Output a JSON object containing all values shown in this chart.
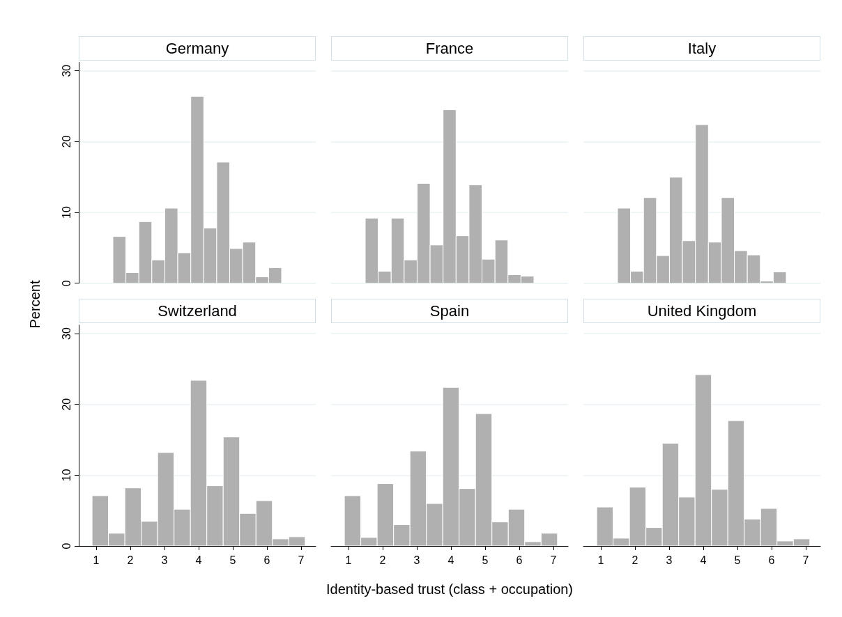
{
  "chart_data": [
    {
      "type": "histogram",
      "title": "Germany",
      "ylabel": "Percent",
      "color": "#b0b0b0",
      "bins": [
        1.49,
        1.87,
        2.25,
        2.63,
        3.01,
        3.39,
        3.77,
        4.15,
        4.53,
        4.91,
        5.29,
        5.67,
        6.05,
        6.43
      ],
      "values": [
        6.6,
        1.5,
        8.7,
        3.3,
        10.6,
        4.3,
        26.4,
        7.8,
        17.1,
        4.9,
        5.8,
        0.9,
        2.2
      ],
      "xlim": [
        0.49,
        7.43
      ],
      "xticks": [
        1,
        2,
        3,
        4,
        5,
        6,
        7
      ],
      "ylim": [
        0,
        31.2
      ],
      "yticks": [
        0,
        10,
        20,
        30
      ],
      "grid": "y",
      "tick_labels": "y"
    },
    {
      "type": "histogram",
      "title": "France",
      "color": "#b0b0b0",
      "bins": [
        1.49,
        1.87,
        2.25,
        2.63,
        3.01,
        3.39,
        3.77,
        4.15,
        4.53,
        4.91,
        5.29,
        5.67,
        6.05,
        6.43
      ],
      "values": [
        9.2,
        1.7,
        9.2,
        3.3,
        14.1,
        5.4,
        24.5,
        6.7,
        13.9,
        3.4,
        6.1,
        1.2,
        1.0
      ],
      "xlim": [
        0.49,
        7.43
      ],
      "xticks": [
        1,
        2,
        3,
        4,
        5,
        6,
        7
      ],
      "ylim": [
        0,
        30
      ],
      "yticks": [
        0,
        10,
        20,
        30
      ],
      "grid": "y",
      "tick_labels": false
    },
    {
      "type": "histogram",
      "title": "Italy",
      "color": "#b0b0b0",
      "bins": [
        1.49,
        1.87,
        2.25,
        2.63,
        3.01,
        3.39,
        3.77,
        4.15,
        4.53,
        4.91,
        5.29,
        5.67,
        6.05,
        6.43
      ],
      "values": [
        10.6,
        1.7,
        12.1,
        3.9,
        15.0,
        6.0,
        22.4,
        5.8,
        12.1,
        4.6,
        4.0,
        0.3,
        1.6
      ],
      "xlim": [
        0.49,
        7.43
      ],
      "xticks": [
        1,
        2,
        3,
        4,
        5,
        6,
        7
      ],
      "ylim": [
        0,
        30
      ],
      "yticks": [
        0,
        10,
        20,
        30
      ],
      "grid": "y",
      "tick_labels": false
    },
    {
      "type": "histogram",
      "title": "Switzerland",
      "color": "#b0b0b0",
      "bins": [
        0.88,
        1.36,
        1.84,
        2.32,
        2.8,
        3.28,
        3.76,
        4.24,
        4.72,
        5.2,
        5.68,
        6.16,
        6.64,
        7.12
      ],
      "values": [
        7.1,
        1.8,
        8.2,
        3.5,
        13.2,
        5.2,
        23.4,
        8.5,
        15.4,
        4.6,
        6.4,
        1.0,
        1.3
      ],
      "xlim": [
        0.49,
        7.43
      ],
      "xticks": [
        1,
        2,
        3,
        4,
        5,
        6,
        7
      ],
      "ylim": [
        0,
        31.2
      ],
      "yticks": [
        0,
        10,
        20,
        30
      ],
      "grid": "y"
    },
    {
      "type": "histogram",
      "title": "Spain",
      "xlabel": "Identity-based trust (class + occupation)",
      "color": "#b0b0b0",
      "bins": [
        0.88,
        1.36,
        1.84,
        2.32,
        2.8,
        3.28,
        3.76,
        4.24,
        4.72,
        5.2,
        5.68,
        6.16,
        6.64,
        7.12
      ],
      "values": [
        7.1,
        1.2,
        8.8,
        3.0,
        13.4,
        6.0,
        22.4,
        8.1,
        18.7,
        3.4,
        5.2,
        0.6,
        1.8
      ],
      "xlim": [
        0.49,
        7.43
      ],
      "xticks": [
        1,
        2,
        3,
        4,
        5,
        6,
        7
      ],
      "ylim": [
        0,
        30
      ],
      "yticks": [
        0,
        10,
        20,
        30
      ],
      "grid": "y",
      "tick_labels": "x"
    },
    {
      "type": "histogram",
      "title": "United Kingdom",
      "color": "#b0b0b0",
      "bins": [
        0.88,
        1.36,
        1.84,
        2.32,
        2.8,
        3.28,
        3.76,
        4.24,
        4.72,
        5.2,
        5.68,
        6.16,
        6.64,
        7.12
      ],
      "values": [
        5.5,
        1.1,
        8.3,
        2.6,
        14.5,
        6.9,
        24.2,
        8.0,
        17.7,
        3.8,
        5.3,
        0.7,
        1.0
      ],
      "xlim": [
        0.49,
        7.43
      ],
      "xticks": [
        1,
        2,
        3,
        4,
        5,
        6,
        7
      ],
      "ylim": [
        0,
        30
      ],
      "yticks": [
        0,
        10,
        20,
        30
      ],
      "grid": "y",
      "tick_labels": "x"
    }
  ]
}
